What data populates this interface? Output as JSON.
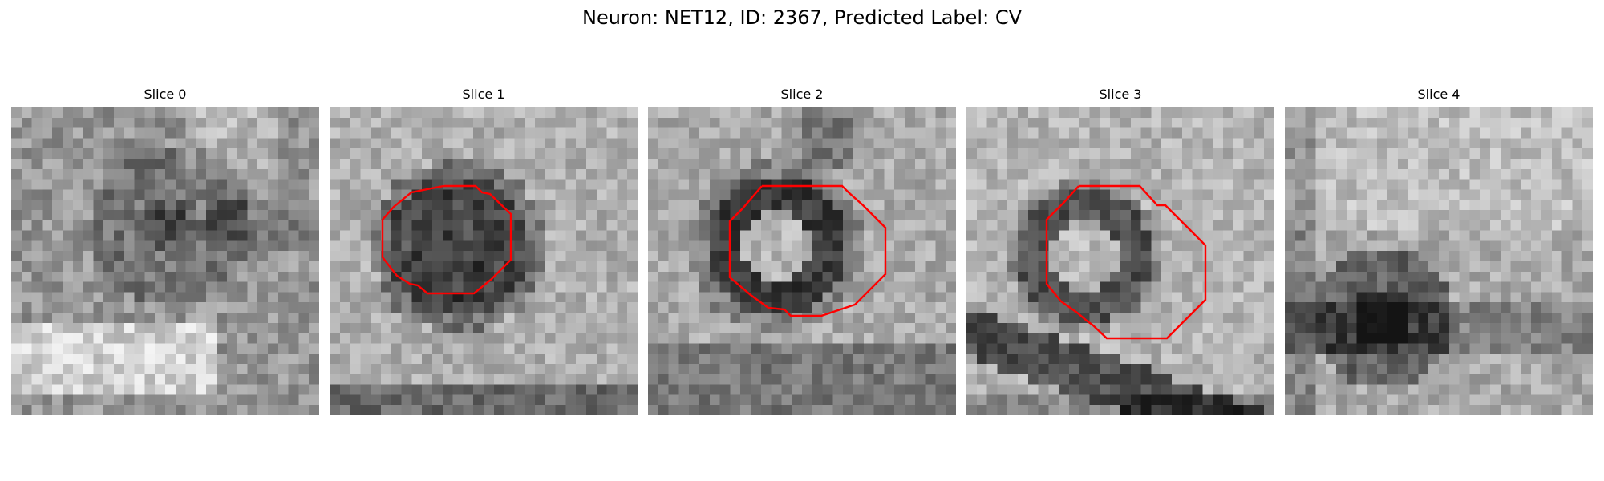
{
  "figure": {
    "title": "Neuron: NET12, ID: 2367, Predicted Label: CV"
  },
  "slices": [
    {
      "label": "Slice 0",
      "has_outline": false
    },
    {
      "label": "Slice 1",
      "has_outline": true
    },
    {
      "label": "Slice 2",
      "has_outline": true
    },
    {
      "label": "Slice 3",
      "has_outline": true
    },
    {
      "label": "Slice 4",
      "has_outline": false
    }
  ],
  "colors": {
    "outline": "#ff0000",
    "background": "#ffffff",
    "colormap": "gray"
  }
}
